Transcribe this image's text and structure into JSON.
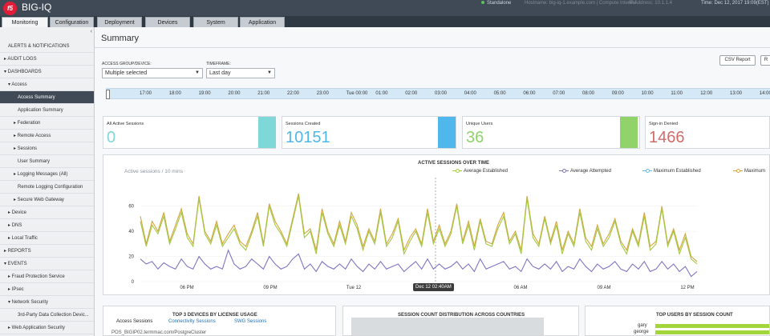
{
  "header": {
    "product": "BIG-IQ",
    "status": "Standalone",
    "hostname": "Hostname: big-iq-1.example.com | Compute Internal",
    "ip": "IP Address: 10.1.1.4",
    "time": "Time: Dec 12, 2017 19:09(EST)"
  },
  "tabs": [
    "Monitoring",
    "Configuration",
    "Deployment",
    "Devices",
    "System",
    "Application"
  ],
  "sidebar": {
    "items": [
      "ALERTS & NOTIFICATIONS",
      "▸ AUDIT LOGS",
      "▾ DASHBOARDS",
      "▾ Access",
      "Access Summary",
      "Application Summary",
      "▸ Federation",
      "▸ Remote Access",
      "▸ Sessions",
      "User Summary",
      "▸ Logging Messages (All)",
      "Remote Logging Configuration",
      "▸ Secure Web Gateway",
      "▸ Device",
      "▸ DNS",
      "▸ Local Traffic",
      "▸ REPORTS",
      "▾ EVENTS",
      "▸ Fraud Protection Service",
      "▸ IPsec",
      "▾ Network Security",
      "3rd-Party Data Collection Devic...",
      "▸ Web Application Security"
    ]
  },
  "main": {
    "title": "Summary",
    "csv_label": "CSV Report",
    "r_label": "R",
    "group_label": "ACCESS GROUP/DEVICE:",
    "group_value": "Multiple selected",
    "timeframe_label": "TIMEFRAME:",
    "timeframe_value": "Last day",
    "timeline_ticks": [
      "17:00",
      "18:00",
      "19:00",
      "20:00",
      "21:00",
      "22:00",
      "23:00",
      "Tue 00:00",
      "01:00",
      "02:00",
      "03:00",
      "04:00",
      "05:00",
      "06:00",
      "07:00",
      "08:00",
      "09:00",
      "10:00",
      "11:00",
      "12:00",
      "13:00",
      "14:00"
    ]
  },
  "cards": [
    {
      "label": "All Active Sessions",
      "value": "0",
      "color": "#7fd8d8"
    },
    {
      "label": "Sessions Created",
      "value": "10151",
      "color": "#4fb7ec"
    },
    {
      "label": "Unique Users",
      "value": "36",
      "color": "#8fd36a"
    },
    {
      "label": "Sign-in Denied",
      "value": "1466",
      "color": "#d36a6a"
    }
  ],
  "chart_data": {
    "type": "line",
    "title": "ACTIVE SESSIONS OVER TIME",
    "subtitle": "Active sessions / 10 mins",
    "ylim": [
      0,
      70
    ],
    "y_ticks": [
      0,
      20,
      40,
      60
    ],
    "x_tick_labels": [
      "06 PM",
      "09 PM",
      "Tue 12",
      "03 AM",
      "06 AM",
      "09 AM",
      "12 PM"
    ],
    "hover_label": "Dec 12 02:40AM",
    "series": [
      {
        "name": "Average Established",
        "color": "#a3c940",
        "values": [
          48,
          28,
          45,
          38,
          52,
          30,
          42,
          55,
          35,
          28,
          66,
          38,
          30,
          45,
          28,
          35,
          42,
          30,
          25,
          38,
          52,
          28,
          60,
          45,
          38,
          28,
          48,
          68,
          35,
          40,
          22,
          55,
          38,
          28,
          45,
          30,
          52,
          42,
          25,
          40,
          30,
          55,
          28,
          35,
          48,
          22,
          32,
          40,
          28,
          55,
          30,
          42,
          28,
          38,
          60,
          30,
          45,
          25,
          48,
          30,
          28,
          42,
          52,
          30,
          38,
          22,
          66,
          35,
          28,
          50,
          30,
          45,
          22,
          38,
          28,
          55,
          32,
          25,
          42,
          28,
          35,
          48,
          30,
          22,
          40,
          28,
          52,
          25,
          30,
          58,
          28,
          40,
          22,
          35,
          18,
          14
        ]
      },
      {
        "name": "Average Attempted",
        "color": "#7f75c2",
        "values": [
          18,
          14,
          16,
          10,
          15,
          12,
          10,
          18,
          12,
          10,
          20,
          14,
          10,
          12,
          10,
          25,
          14,
          10,
          12,
          18,
          14,
          10,
          20,
          14,
          10,
          12,
          18,
          22,
          10,
          14,
          8,
          16,
          12,
          10,
          14,
          10,
          18,
          12,
          8,
          14,
          10,
          16,
          10,
          12,
          14,
          8,
          12,
          16,
          10,
          18,
          10,
          14,
          10,
          12,
          16,
          10,
          14,
          8,
          18,
          10,
          12,
          14,
          16,
          10,
          12,
          8,
          18,
          12,
          10,
          14,
          10,
          16,
          8,
          12,
          10,
          18,
          12,
          8,
          14,
          10,
          12,
          16,
          10,
          8,
          14,
          10,
          16,
          8,
          10,
          16,
          10,
          14,
          8,
          12,
          4,
          8
        ]
      },
      {
        "name": "Maximum Established",
        "color": "#5bc0de",
        "values": []
      },
      {
        "name": "Maximum",
        "color": "#d4a640",
        "values": [
          52,
          30,
          48,
          40,
          55,
          32,
          45,
          58,
          38,
          30,
          68,
          40,
          32,
          48,
          30,
          38,
          45,
          32,
          28,
          40,
          55,
          30,
          62,
          48,
          40,
          30,
          50,
          70,
          38,
          42,
          25,
          58,
          40,
          30,
          48,
          32,
          55,
          45,
          28,
          42,
          32,
          58,
          30,
          38,
          50,
          25,
          35,
          42,
          30,
          58,
          32,
          45,
          30,
          40,
          62,
          32,
          48,
          28,
          50,
          32,
          30,
          45,
          55,
          32,
          40,
          25,
          68,
          38,
          30,
          52,
          32,
          48,
          25,
          40,
          30,
          58,
          35,
          28,
          45,
          30,
          38,
          50,
          32,
          25,
          42,
          30,
          55,
          28,
          32,
          60,
          30,
          42,
          25,
          38,
          20,
          16
        ]
      }
    ]
  },
  "bottom": {
    "left_title": "TOP 3 DEVICES BY LICENSE USAGE",
    "sub_tabs": [
      "Access Sessions",
      "Connectivity Sessions",
      "SWG Sessions"
    ],
    "left_row": "POS_BIGIP02.termmac.com/PostgreCluster",
    "middle_title": "SESSION COUNT DISTRIBUTION ACROSS COUNTRIES",
    "right_title": "TOP USERS BY SESSION COUNT",
    "users": [
      "gary",
      "george"
    ]
  }
}
